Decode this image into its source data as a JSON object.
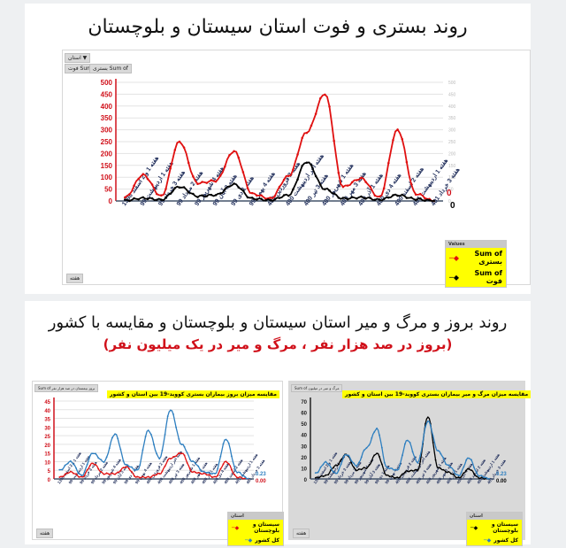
{
  "section1": {
    "title": "روند بستری و فوت استان سیستان و بلوچستان",
    "filter_pill": "استان",
    "value_pills": [
      "Sum of بستری",
      "Sum of فوت"
    ],
    "axis_pill": "هفته",
    "legend": {
      "header": "Values",
      "items": [
        {
          "label": "Sum of بستری",
          "color": "#e01010"
        },
        {
          "label": "Sum of فوت",
          "color": "#000000"
        }
      ]
    },
    "end_labels": [
      "0",
      "0"
    ]
  },
  "section2": {
    "title": "روند بروز و مرگ و میر استان سیستان و بلوچستان و مقایسه با کشور",
    "subtitle": "(بروز در صد هزار نفر ، مرگ و میر در یک میلیون نفر)",
    "left_chart": {
      "field_pill": "بروز بیمستان در صد هزار نفر Sum of",
      "title": "مقایسه میزان بروز بیماران بستری کووید-19 بین استان و کشور",
      "axis_pill": "هفته",
      "end_labels": [
        "0.23",
        "0.00"
      ],
      "legend": {
        "header": "استان",
        "items": [
          {
            "label": "سیستان و بلوچستان",
            "color": "#e01010"
          },
          {
            "label": "کل کشور",
            "color": "#2e7fc0"
          }
        ]
      }
    },
    "right_chart": {
      "field_pill": "مرگ و میر در میلیون Sum of",
      "title": "مقایسه میزان مرگ و میر بیماران بستری کووید-19 بین استان و کشور",
      "axis_pill": "هفته",
      "end_labels": [
        "0.23",
        "0.00"
      ],
      "legend": {
        "header": "استان",
        "items": [
          {
            "label": "سیستان و بلوچستان",
            "color": "#000000"
          },
          {
            "label": "کل کشور",
            "color": "#2e7fc0"
          }
        ]
      }
    }
  },
  "chart_data": [
    {
      "type": "line",
      "title": "روند بستری و فوت استان سیستان و بلوچستان",
      "xlabel": "هفته",
      "ylabel": "",
      "ylim": [
        0,
        500
      ],
      "yticks": [
        0,
        50,
        100,
        150,
        200,
        250,
        300,
        350,
        400,
        450,
        500
      ],
      "grid": true,
      "legend_position": "bottom-right",
      "categories": [
        "هفته 1 و 2 اسفند 1398",
        "هفته 1 اردیبهشت 99",
        "هفته 3 خرداد 99",
        "هفته 2 مرداد 99",
        "هفته 4 شهریور 99",
        "هفته 3 آبان 99",
        "هفته 1 دی 99",
        "هفته 4 بهمن 99",
        "هفته 2 فروردین 400",
        "هفته آخر اردیبهشت 400",
        "هفته 3 تیر 400",
        "هفته 1 شهریور 400",
        "هفته 3 مهر 400",
        "هفته 1 آذر 400",
        "هفته 4 دی 400",
        "هفته 2 اسفند 400",
        "هفته 1 اردیبهشت 401",
        "هفته 3 خرداد 401"
      ],
      "series": [
        {
          "name": "Sum of بستری",
          "color": "#e01010",
          "values": [
            15,
            110,
            20,
            250,
            75,
            85,
            210,
            30,
            10,
            105,
            290,
            452,
            60,
            95,
            15,
            300,
            30,
            0
          ]
        },
        {
          "name": "Sum of فوت",
          "color": "#000000",
          "values": [
            2,
            12,
            5,
            60,
            20,
            25,
            70,
            10,
            3,
            25,
            165,
            50,
            10,
            15,
            5,
            25,
            8,
            0
          ]
        }
      ]
    },
    {
      "type": "line",
      "title": "مقایسه میزان بروز بیماران بستری کووید-19 بین استان و کشور",
      "ylim": [
        0,
        45
      ],
      "yticks": [
        0,
        5,
        10,
        15,
        20,
        25,
        30,
        35,
        40,
        45
      ],
      "grid": true,
      "categories": [
        "هفته 1 و 2 اسفند 1398",
        "هفته 1 اردیبهشت 99",
        "هفته 3 خرداد 99",
        "هفته 2 مرداد 99",
        "هفته 4 شهریور 99",
        "هفته 3 آبان 99",
        "هفته 1 دی 99",
        "هفته 4 بهمن 99",
        "هفته 2 فروردین 400",
        "هفته آخر اردیبهشت 400",
        "هفته 3 تیر 400",
        "هفته 1 شهریور 400",
        "هفته 3 مهر 400",
        "هفته 1 آذر 400",
        "هفته 4 دی 400",
        "هفته 2 اسفند 400",
        "هفته 1 اردیبهشت 401",
        "هفته 3 خرداد 401"
      ],
      "series": [
        {
          "name": "سیستان و بلوچستان",
          "color": "#e01010",
          "values": [
            1,
            4,
            1,
            9,
            3,
            3,
            7,
            1,
            1,
            3,
            12,
            15,
            4,
            3,
            1,
            10,
            1,
            0.0
          ]
        },
        {
          "name": "کل کشور",
          "color": "#2e7fc0",
          "values": [
            5,
            10,
            2,
            15,
            10,
            26,
            8,
            5,
            28,
            12,
            40,
            20,
            10,
            4,
            3,
            23,
            4,
            0.23
          ]
        }
      ]
    },
    {
      "type": "line",
      "title": "مقایسه میزان مرگ و میر بیماران بستری کووید-19 بین استان و کشور",
      "ylim": [
        0,
        70
      ],
      "yticks": [
        0,
        10,
        20,
        30,
        40,
        50,
        60,
        70
      ],
      "grid": false,
      "categories": [
        "هفته 1 و 2 اسفند 1398",
        "هفته 1 اردیبهشت 99",
        "هفته 3 خرداد 99",
        "هفته 2 مرداد 99",
        "هفته 4 شهریور 99",
        "هفته 3 آبان 99",
        "هفته 1 دی 99",
        "هفته 4 بهمن 99",
        "هفته 2 فروردین 400",
        "هفته آخر اردیبهشت 400",
        "هفته 3 تیر 400",
        "هفته 1 شهریور 400",
        "هفته 3 مهر 400",
        "هفته 1 آذر 400",
        "هفته 4 دی 400",
        "هفته 2 اسفند 400",
        "هفته 1 اردیبهشت 401",
        "هفته 3 خرداد 401"
      ],
      "series": [
        {
          "name": "سیستان و بلوچستان",
          "color": "#000000",
          "values": [
            1,
            3,
            12,
            22,
            8,
            10,
            23,
            3,
            1,
            7,
            8,
            56,
            10,
            6,
            1,
            9,
            1,
            0.0
          ]
        },
        {
          "name": "کل کشور",
          "color": "#2e7fc0",
          "values": [
            5,
            15,
            5,
            22,
            12,
            28,
            45,
            10,
            8,
            35,
            15,
            52,
            25,
            12,
            3,
            19,
            3,
            0.23
          ]
        }
      ]
    }
  ]
}
